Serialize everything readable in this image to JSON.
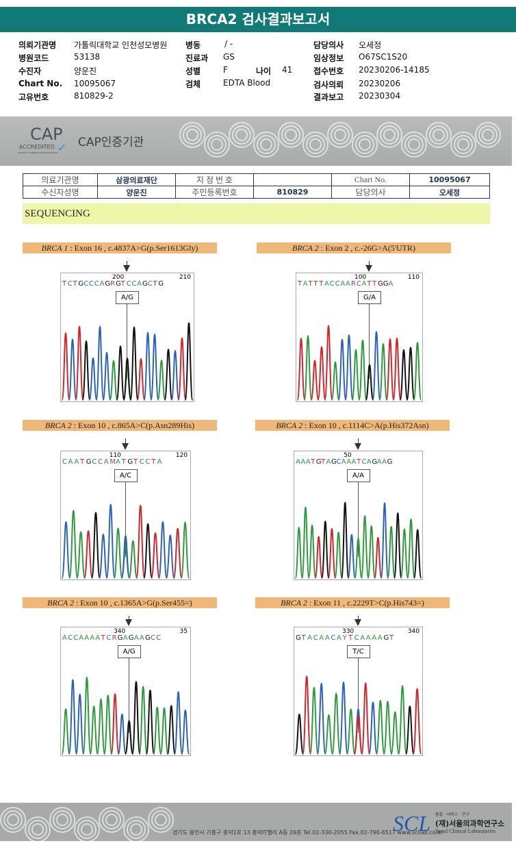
{
  "title": "BRCA2 검사결과보고서",
  "info": [
    {
      "k": "의뢰기관명",
      "v": "가톨릭대학교 인천성모병원"
    },
    {
      "k": "병원코드",
      "v": "53138"
    },
    {
      "k": "수진자",
      "v": "양운진"
    },
    {
      "k": "Chart No.",
      "v": "10095067"
    },
    {
      "k": "고유번호",
      "v": "810829-2"
    },
    {
      "k": "병동",
      "v": "/ -"
    },
    {
      "k": "진료과",
      "v": "GS"
    },
    {
      "k": "성별",
      "v": "F"
    },
    {
      "k": "나이",
      "v": "41"
    },
    {
      "k": "검체",
      "v": "EDTA Blood"
    },
    {
      "k": "담당의사",
      "v": "오세정"
    },
    {
      "k": "임상정보",
      "v": "O67SC1S20"
    },
    {
      "k": "접수번호",
      "v": "20230206-14185"
    },
    {
      "k": "검사의뢰",
      "v": "20230206"
    },
    {
      "k": "결과보고",
      "v": "20230304"
    }
  ],
  "cap": {
    "logo": "CAP",
    "accredited": "ACCREDITED",
    "college": "COLLEGE of AMERICAN PATHOLOGISTS",
    "label": "CAP인증기관"
  },
  "table": {
    "r1": [
      "의료기관명",
      "삼광의료재단",
      "지 정 번 호",
      "",
      "Chart No.",
      "10095067"
    ],
    "r2": [
      "수신자성명",
      "양운진",
      "주민등록번호",
      "810829",
      "담당의사",
      "오세정"
    ]
  },
  "section": "SEQUENCING",
  "panels": [
    {
      "gene": "BRCA 1",
      "desc": " : Exon 16 , c.4837A>G(p.Ser1613Gly)",
      "n1": "200",
      "n2": "210",
      "seq": "TCTGCCCAGRGTCCAGCTG",
      "gt": "A/G",
      "mut": 9
    },
    {
      "gene": "BRCA 2",
      "desc": " : Exon 2 , c.-26G>A(5'UTR)",
      "n1": "100",
      "n2": "110",
      "seq": "TATTTACCAARCATTGGA",
      "gt": "G/A",
      "mut": 10
    },
    {
      "gene": "BRCA 2",
      "desc": " : Exon 10 , c.865A>C(p.Asn289His)",
      "n1": "110",
      "n2": "120",
      "seq": "CAATGCCAMATGTCCTA",
      "gt": "A/C",
      "mut": 8
    },
    {
      "gene": "BRCA 2",
      "desc": " : Exon 10 , c.1114C>A(p.His372Asn)",
      "n1": "50",
      "n2": "",
      "seq": "AAATGTAGCAAATCAGAAG",
      "gt": "A/A",
      "mut": 9
    },
    {
      "gene": "BRCA 2",
      "desc": " : Exon 10 , c.1365A>G(p.Ser455=)",
      "n1": "340",
      "n2": "35",
      "seq": "ACCAAAATCRGAGAAGCC",
      "gt": "A/G",
      "mut": 9
    },
    {
      "gene": "BRCA 2",
      "desc": " : Exon 11 , c.2229T>C(p.His743=)",
      "n1": "330",
      "n2": "340",
      "seq": "GTACAACAYTCAAAAGT",
      "gt": "T/C",
      "mut": 8
    }
  ],
  "footer": {
    "address": "경기도 용인시 기흥구 흥덕1로 13 흥덕IT밸리 A동 26층  Tel.02-330-2055  Fax.02-790-6517  www.scllab.co.kr",
    "logo": "SCL",
    "slogan": "품질 · 서비스 · 연구",
    "org": "(재)서울의과학연구소",
    "org_en": "Seoul Clinical Laboratories"
  },
  "colors": {
    "A": "#2e9a3e",
    "C": "#2b62b8",
    "G": "#111111",
    "T": "#d0262b",
    "R": "#c0307a",
    "Y": "#c0307a",
    "M": "#c0307a"
  }
}
